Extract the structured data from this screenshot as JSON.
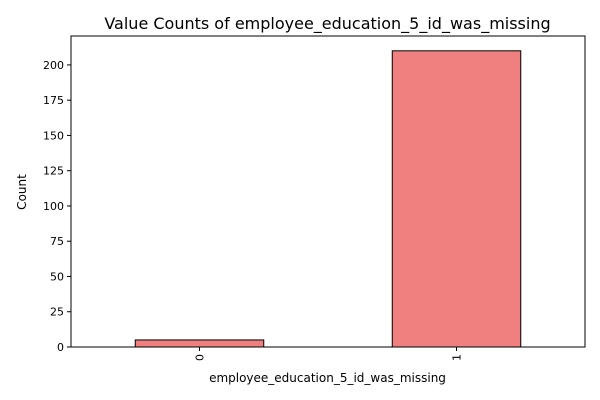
{
  "chart_data": {
    "type": "bar",
    "title": "Value Counts of employee_education_5_id_was_missing",
    "xlabel": "employee_education_5_id_was_missing",
    "ylabel": "Count",
    "categories": [
      "0",
      "1"
    ],
    "values": [
      5,
      210
    ],
    "ylim": [
      0,
      220.5
    ],
    "yticks": [
      0,
      25,
      50,
      75,
      100,
      125,
      150,
      175,
      200
    ],
    "bar_color": "#f08080",
    "bar_edge_color": "#000000",
    "xtick_rotation": 90,
    "grid": false,
    "legend": false
  }
}
